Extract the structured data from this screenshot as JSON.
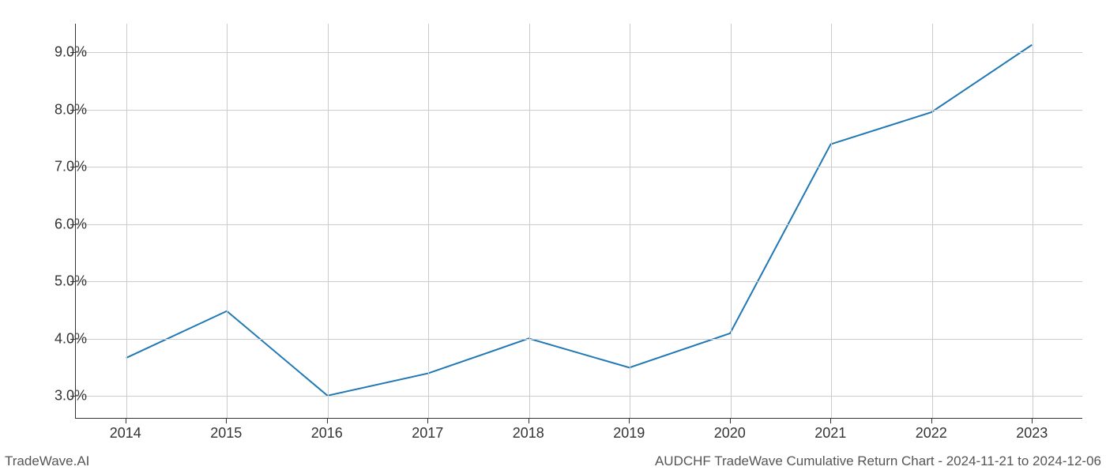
{
  "chart": {
    "type": "line",
    "x_values": [
      2014,
      2015,
      2016,
      2017,
      2018,
      2019,
      2020,
      2021,
      2022,
      2023
    ],
    "y_values": [
      3.65,
      4.47,
      2.99,
      3.38,
      3.99,
      3.48,
      4.08,
      7.39,
      7.95,
      9.13
    ],
    "x_tick_labels": [
      "2014",
      "2015",
      "2016",
      "2017",
      "2018",
      "2019",
      "2020",
      "2021",
      "2022",
      "2023"
    ],
    "y_tick_values": [
      3.0,
      4.0,
      5.0,
      6.0,
      7.0,
      8.0,
      9.0
    ],
    "y_tick_labels": [
      "3.0%",
      "4.0%",
      "5.0%",
      "6.0%",
      "7.0%",
      "8.0%",
      "9.0%"
    ],
    "xlim": [
      2013.5,
      2023.5
    ],
    "ylim": [
      2.6,
      9.5
    ],
    "line_color": "#1f77b4",
    "line_width": 2.0,
    "grid_color": "#cccccc",
    "background_color": "#ffffff",
    "tick_fontsize": 18,
    "footer_fontsize": 17
  },
  "footer": {
    "left": "TradeWave.AI",
    "right": "AUDCHF TradeWave Cumulative Return Chart - 2024-11-21 to 2024-12-06"
  }
}
